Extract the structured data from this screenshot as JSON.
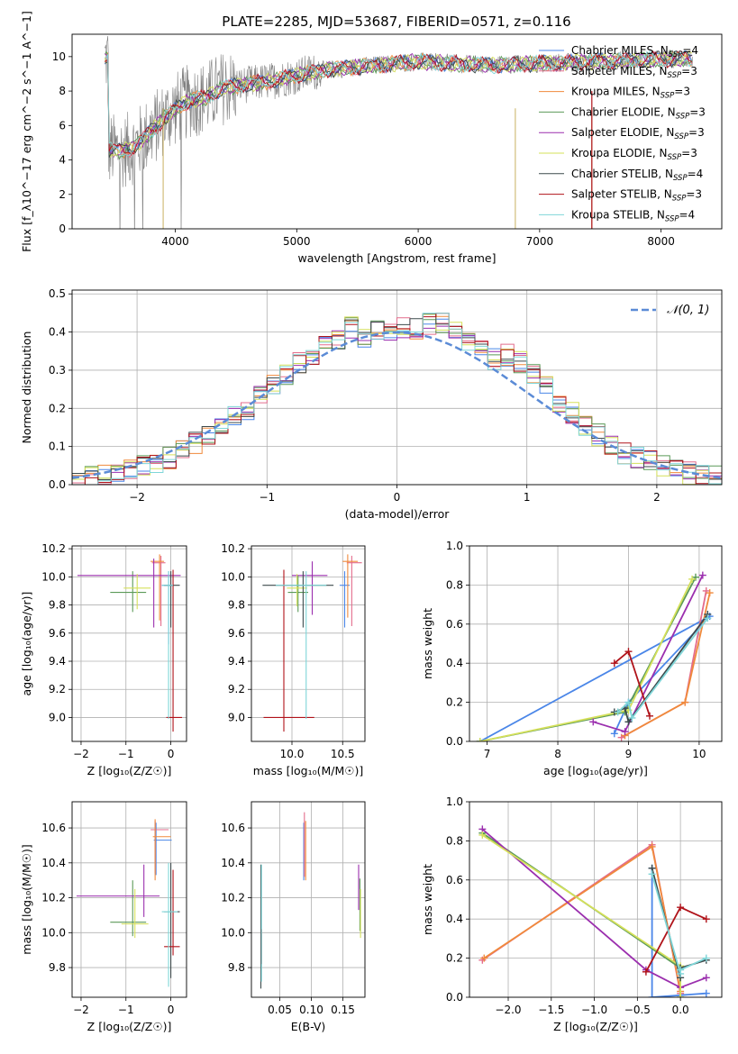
{
  "figure": {
    "title": "PLATE=2285, MJD=53687, FIBERID=0571, z=0.116"
  },
  "colors": {
    "Chabrier MILES": "#4a86e8",
    "Salpeter MILES": "#e36c8c",
    "Kroupa MILES": "#f08a3c",
    "Chabrier ELODIE": "#5b9a58",
    "Salpeter ELODIE": "#9b2fae",
    "Kroupa ELODIE": "#d5e05a",
    "Chabrier STELIB": "#3c4a4c",
    "Salpeter STELIB": "#b0131a",
    "Kroupa STELIB": "#7fd6d8",
    "data": "#808080",
    "gaussian": "#5b8bd6"
  },
  "chart_data": [
    {
      "id": "spectrum",
      "type": "line",
      "xlabel": "wavelength [Angstrom, rest frame]",
      "ylabel": "Flux [f_λ10^−17 erg cm^−2 s^−1 A^−1]",
      "xlim": [
        3150,
        8500
      ],
      "ylim": [
        0,
        11.3
      ],
      "xticks": [
        4000,
        5000,
        6000,
        7000,
        8000
      ],
      "yticks": [
        0,
        2,
        4,
        6,
        8,
        10
      ],
      "legend_position": "top-right",
      "legend": [
        {
          "label": "Chabrier MILES, N",
          "sub": "SSP",
          "suffix": "=4",
          "key": "Chabrier MILES"
        },
        {
          "label": "Salpeter MILES, N",
          "sub": "SSP",
          "suffix": "=3",
          "key": "Salpeter MILES"
        },
        {
          "label": "Kroupa MILES, N",
          "sub": "SSP",
          "suffix": "=3",
          "key": "Kroupa MILES"
        },
        {
          "label": "Chabrier ELODIE, N",
          "sub": "SSP",
          "suffix": "=3",
          "key": "Chabrier ELODIE"
        },
        {
          "label": "Salpeter ELODIE, N",
          "sub": "SSP",
          "suffix": "=3",
          "key": "Salpeter ELODIE"
        },
        {
          "label": "Kroupa ELODIE, N",
          "sub": "SSP",
          "suffix": "=3",
          "key": "Kroupa ELODIE"
        },
        {
          "label": "Chabrier STELIB, N",
          "sub": "SSP",
          "suffix": "=4",
          "key": "Chabrier STELIB"
        },
        {
          "label": "Salpeter STELIB, N",
          "sub": "SSP",
          "suffix": "=3",
          "key": "Salpeter STELIB"
        },
        {
          "label": "Kroupa STELIB, N",
          "sub": "SSP",
          "suffix": "=4",
          "key": "Kroupa STELIB"
        }
      ],
      "continuum": [
        [
          3450,
          4.6
        ],
        [
          3550,
          4.5
        ],
        [
          3650,
          4.7
        ],
        [
          3750,
          5.3
        ],
        [
          3850,
          6.0
        ],
        [
          3950,
          6.7
        ],
        [
          4050,
          7.2
        ],
        [
          4150,
          7.5
        ],
        [
          4250,
          7.6
        ],
        [
          4400,
          8.2
        ],
        [
          4600,
          8.4
        ],
        [
          4800,
          8.6
        ],
        [
          5000,
          8.9
        ],
        [
          5200,
          9.2
        ],
        [
          5500,
          9.4
        ],
        [
          5800,
          9.6
        ],
        [
          6000,
          9.7
        ],
        [
          6300,
          9.6
        ],
        [
          6600,
          9.5
        ],
        [
          7000,
          9.6
        ],
        [
          7400,
          9.7
        ],
        [
          7800,
          9.8
        ],
        [
          8250,
          9.9
        ]
      ],
      "data_range": [
        3420,
        8260
      ]
    },
    {
      "id": "residuals",
      "type": "histogram",
      "xlabel": "(data-model)/error",
      "ylabel": "Normed distribution",
      "xlim": [
        -2.5,
        2.5
      ],
      "ylim": [
        0,
        0.51
      ],
      "xticks": [
        -2,
        -1,
        0,
        1,
        2
      ],
      "yticks": [
        0.0,
        0.1,
        0.2,
        0.3,
        0.4,
        0.5
      ],
      "legend_label": "𝒩(0, 1)",
      "legend_position": "top-right",
      "bin_width": 0.1,
      "bin_start": -2.5,
      "base": [
        0.015,
        0.02,
        0.025,
        0.03,
        0.04,
        0.05,
        0.06,
        0.07,
        0.09,
        0.11,
        0.13,
        0.15,
        0.18,
        0.2,
        0.23,
        0.26,
        0.29,
        0.32,
        0.34,
        0.37,
        0.38,
        0.41,
        0.39,
        0.4,
        0.4,
        0.41,
        0.41,
        0.42,
        0.42,
        0.4,
        0.38,
        0.36,
        0.33,
        0.34,
        0.32,
        0.29,
        0.26,
        0.22,
        0.19,
        0.15,
        0.13,
        0.1,
        0.08,
        0.07,
        0.06,
        0.05,
        0.04,
        0.03,
        0.025,
        0.02
      ],
      "series_order": [
        "Chabrier MILES",
        "Salpeter MILES",
        "Kroupa MILES",
        "Chabrier ELODIE",
        "Salpeter ELODIE",
        "Kroupa ELODIE",
        "Chabrier STELIB",
        "Salpeter STELIB",
        "Kroupa STELIB"
      ]
    },
    {
      "id": "age_vs_Z",
      "type": "errorbar",
      "xlabel": "Z [log₁₀(Z/Z☉)]",
      "ylabel": "age  [log₁₀(age/yr)]",
      "xlim": [
        -2.2,
        0.35
      ],
      "ylim": [
        8.83,
        10.22
      ],
      "xticks": [
        -2,
        -1,
        0
      ],
      "yticks": [
        9.0,
        9.2,
        9.4,
        9.6,
        9.8,
        10.0,
        10.2
      ],
      "points": [
        {
          "key": "Chabrier MILES",
          "x": -0.05,
          "y": 9.94,
          "xe": [
            0.15,
            0.1
          ],
          "ye": [
            0.42,
            0.1
          ]
        },
        {
          "key": "Salpeter MILES",
          "x": -0.22,
          "y": 10.1,
          "xe": [
            0.2,
            0.1
          ],
          "ye": [
            0.45,
            0.05
          ]
        },
        {
          "key": "Kroupa MILES",
          "x": -0.25,
          "y": 10.11,
          "xe": [
            0.2,
            0.1
          ],
          "ye": [
            0.42,
            0.05
          ]
        },
        {
          "key": "Chabrier ELODIE",
          "x": -0.85,
          "y": 9.89,
          "xe": [
            0.5,
            0.3
          ],
          "ye": [
            0.14,
            0.15
          ]
        },
        {
          "key": "Salpeter ELODIE",
          "x": -0.38,
          "y": 10.01,
          "xe": [
            1.7,
            0.6
          ],
          "ye": [
            0.37,
            0.12
          ]
        },
        {
          "key": "Kroupa ELODIE",
          "x": -0.75,
          "y": 9.92,
          "xe": [
            0.3,
            0.3
          ],
          "ye": [
            0.15,
            0.1
          ]
        },
        {
          "key": "Chabrier STELIB",
          "x": 0.0,
          "y": 9.94,
          "xe": [
            0.15,
            0.2
          ],
          "ye": [
            0.3,
            0.1
          ]
        },
        {
          "key": "Salpeter STELIB",
          "x": 0.05,
          "y": 9.0,
          "xe": [
            0.15,
            0.2
          ],
          "ye": [
            0.1,
            1.05
          ]
        },
        {
          "key": "Kroupa STELIB",
          "x": -0.05,
          "y": 9.94,
          "xe": [
            0.15,
            0.1
          ],
          "ye": [
            0.95,
            0.1
          ]
        }
      ]
    },
    {
      "id": "age_vs_mass",
      "type": "errorbar",
      "xlabel": "mass [log₁₀(M/M☉)]",
      "xlim": [
        9.6,
        10.72
      ],
      "ylim": [
        8.83,
        10.22
      ],
      "xticks": [
        10.0,
        10.5
      ],
      "yticks": [
        9.0,
        9.2,
        9.4,
        9.6,
        9.8,
        10.0,
        10.2
      ],
      "points": [
        {
          "key": "Chabrier MILES",
          "x": 10.52,
          "y": 9.94,
          "xe": [
            0.05,
            0.05
          ],
          "ye": [
            0.3,
            0.1
          ]
        },
        {
          "key": "Salpeter MILES",
          "x": 10.59,
          "y": 10.1,
          "xe": [
            0.05,
            0.1
          ],
          "ye": [
            0.45,
            0.05
          ]
        },
        {
          "key": "Kroupa MILES",
          "x": 10.55,
          "y": 10.11,
          "xe": [
            0.05,
            0.1
          ],
          "ye": [
            0.4,
            0.05
          ]
        },
        {
          "key": "Chabrier ELODIE",
          "x": 10.06,
          "y": 9.89,
          "xe": [
            0.1,
            0.1
          ],
          "ye": [
            0.14,
            0.12
          ]
        },
        {
          "key": "Salpeter ELODIE",
          "x": 10.2,
          "y": 10.01,
          "xe": [
            0.2,
            0.15
          ],
          "ye": [
            0.28,
            0.1
          ]
        },
        {
          "key": "Kroupa ELODIE",
          "x": 10.05,
          "y": 9.92,
          "xe": [
            0.1,
            0.1
          ],
          "ye": [
            0.13,
            0.1
          ]
        },
        {
          "key": "Chabrier STELIB",
          "x": 10.11,
          "y": 9.94,
          "xe": [
            0.4,
            0.3
          ],
          "ye": [
            0.3,
            0.1
          ]
        },
        {
          "key": "Salpeter STELIB",
          "x": 9.92,
          "y": 9.0,
          "xe": [
            0.2,
            0.3
          ],
          "ye": [
            0.1,
            1.05
          ]
        },
        {
          "key": "Kroupa STELIB",
          "x": 10.14,
          "y": 9.94,
          "xe": [
            0.3,
            0.2
          ],
          "ye": [
            0.95,
            0.1
          ]
        }
      ]
    },
    {
      "id": "weight_vs_age",
      "type": "line",
      "xlabel": "age  [log₁₀(age/yr)]",
      "ylabel": "mass weight",
      "xlim": [
        6.75,
        10.32
      ],
      "ylim": [
        0,
        1.0
      ],
      "xticks": [
        7,
        8,
        9,
        10
      ],
      "yticks": [
        0.0,
        0.2,
        0.4,
        0.6,
        0.8,
        1.0
      ],
      "series": [
        {
          "key": "Chabrier MILES",
          "x": [
            8.8,
            9.0,
            10.15,
            6.9
          ],
          "y": [
            0.04,
            0.2,
            0.64,
            0.0
          ]
        },
        {
          "key": "Salpeter MILES",
          "x": [
            8.9,
            9.8,
            10.1
          ],
          "y": [
            0.02,
            0.2,
            0.77
          ]
        },
        {
          "key": "Kroupa MILES",
          "x": [
            8.95,
            9.8,
            10.15
          ],
          "y": [
            0.03,
            0.2,
            0.76
          ]
        },
        {
          "key": "Chabrier ELODIE",
          "x": [
            6.9,
            8.95,
            9.95
          ],
          "y": [
            0.0,
            0.15,
            0.84
          ]
        },
        {
          "key": "Salpeter ELODIE",
          "x": [
            8.5,
            8.95,
            10.05
          ],
          "y": [
            0.1,
            0.05,
            0.85
          ]
        },
        {
          "key": "Kroupa ELODIE",
          "x": [
            6.9,
            9.0,
            9.9
          ],
          "y": [
            0.0,
            0.16,
            0.83
          ]
        },
        {
          "key": "Chabrier STELIB",
          "x": [
            8.8,
            8.95,
            9.0,
            10.12
          ],
          "y": [
            0.15,
            0.17,
            0.1,
            0.65
          ]
        },
        {
          "key": "Salpeter STELIB",
          "x": [
            8.8,
            9.0,
            9.3
          ],
          "y": [
            0.4,
            0.46,
            0.13
          ]
        },
        {
          "key": "Kroupa STELIB",
          "x": [
            8.85,
            9.0,
            9.05,
            10.12
          ],
          "y": [
            0.15,
            0.2,
            0.12,
            0.63
          ]
        }
      ]
    },
    {
      "id": "mass_vs_Z",
      "type": "errorbar",
      "xlabel": "Z [log₁₀(Z/Z☉)]",
      "ylabel": "mass [log₁₀(M/M☉)]",
      "xlim": [
        -2.2,
        0.35
      ],
      "ylim": [
        9.63,
        10.75
      ],
      "xticks": [
        -2,
        -1,
        0
      ],
      "yticks": [
        9.8,
        10.0,
        10.2,
        10.4,
        10.6
      ],
      "points": [
        {
          "key": "Chabrier MILES",
          "x": -0.33,
          "y": 10.53,
          "xe": [
            0.05,
            0.35
          ],
          "ye": [
            0.2,
            0.1
          ]
        },
        {
          "key": "Salpeter MILES",
          "x": -0.35,
          "y": 10.59,
          "xe": [
            0.1,
            0.3
          ],
          "ye": [
            0.25,
            0.05
          ]
        },
        {
          "key": "Kroupa MILES",
          "x": -0.35,
          "y": 10.55,
          "xe": [
            0.05,
            0.35
          ],
          "ye": [
            0.25,
            0.1
          ]
        },
        {
          "key": "Chabrier ELODIE",
          "x": -0.85,
          "y": 10.06,
          "xe": [
            0.5,
            0.3
          ],
          "ye": [
            0.08,
            0.24
          ]
        },
        {
          "key": "Salpeter ELODIE",
          "x": -0.6,
          "y": 10.21,
          "xe": [
            1.5,
            0.35
          ],
          "ye": [
            0.12,
            0.18
          ]
        },
        {
          "key": "Kroupa ELODIE",
          "x": -0.8,
          "y": 10.05,
          "xe": [
            0.3,
            0.3
          ],
          "ye": [
            0.08,
            0.2
          ]
        },
        {
          "key": "Chabrier STELIB",
          "x": 0.0,
          "y": 10.12,
          "xe": [
            0.15,
            0.2
          ],
          "ye": [
            0.38,
            0.28
          ]
        },
        {
          "key": "Salpeter STELIB",
          "x": 0.05,
          "y": 9.92,
          "xe": [
            0.2,
            0.15
          ],
          "ye": [
            0.05,
            0.44
          ]
        },
        {
          "key": "Kroupa STELIB",
          "x": -0.05,
          "y": 10.12,
          "xe": [
            0.15,
            0.2
          ],
          "ye": [
            0.43,
            0.28
          ]
        }
      ]
    },
    {
      "id": "mass_vs_ebv",
      "type": "errorbar",
      "xlabel": "E(B-V)",
      "xlim": [
        0.005,
        0.185
      ],
      "ylim": [
        9.63,
        10.75
      ],
      "xticks": [
        0.05,
        0.1,
        0.15
      ],
      "yticks": [
        9.8,
        10.0,
        10.2,
        10.4,
        10.6
      ],
      "points": [
        {
          "key": "Chabrier MILES",
          "x": 0.088,
          "y": 10.53,
          "xe": [
            0,
            0
          ],
          "ye": [
            0.23,
            0.1
          ]
        },
        {
          "key": "Salpeter MILES",
          "x": 0.089,
          "y": 10.59,
          "xe": [
            0,
            0
          ],
          "ye": [
            0.27,
            0.1
          ]
        },
        {
          "key": "Kroupa MILES",
          "x": 0.091,
          "y": 10.55,
          "xe": [
            0,
            0
          ],
          "ye": [
            0.25,
            0.09
          ]
        },
        {
          "key": "Chabrier ELODIE",
          "x": 0.177,
          "y": 10.06,
          "xe": [
            0,
            0
          ],
          "ye": [
            0.05,
            0.25
          ]
        },
        {
          "key": "Salpeter ELODIE",
          "x": 0.175,
          "y": 10.21,
          "xe": [
            0,
            0
          ],
          "ye": [
            0.08,
            0.18
          ]
        },
        {
          "key": "Kroupa ELODIE",
          "x": 0.178,
          "y": 10.05,
          "xe": [
            0,
            0
          ],
          "ye": [
            0.08,
            0.2
          ]
        },
        {
          "key": "Chabrier STELIB",
          "x": 0.02,
          "y": 10.12,
          "xe": [
            0,
            0
          ],
          "ye": [
            0.44,
            0.27
          ]
        },
        {
          "key": "Salpeter STELIB",
          "x": 0.021,
          "y": 9.92,
          "xe": [
            0,
            0
          ],
          "ye": [
            0.1,
            0.1
          ]
        },
        {
          "key": "Kroupa STELIB",
          "x": 0.021,
          "y": 10.12,
          "xe": [
            0,
            0
          ],
          "ye": [
            0.4,
            0.27
          ]
        }
      ]
    },
    {
      "id": "weight_vs_Z",
      "type": "line",
      "xlabel": "Z [log₁₀(Z/Z☉)]",
      "ylabel": "mass weight",
      "xlim": [
        -2.45,
        0.48
      ],
      "ylim": [
        0,
        1.0
      ],
      "xticks": [
        -2.0,
        -1.5,
        -1.0,
        -0.5,
        0.0
      ],
      "yticks": [
        0.0,
        0.2,
        0.4,
        0.6,
        0.8,
        1.0
      ],
      "series": [
        {
          "key": "Chabrier MILES",
          "x": [
            -0.33,
            -0.33,
            0.3
          ],
          "y": [
            0.66,
            0.0,
            0.02
          ]
        },
        {
          "key": "Salpeter MILES",
          "x": [
            -2.3,
            -0.33,
            0.0
          ],
          "y": [
            0.19,
            0.78,
            0.02
          ]
        },
        {
          "key": "Kroupa MILES",
          "x": [
            -2.28,
            -0.33,
            0.0
          ],
          "y": [
            0.2,
            0.77,
            0.03
          ]
        },
        {
          "key": "Chabrier ELODIE",
          "x": [
            -2.3,
            0.0,
            0.0
          ],
          "y": [
            0.84,
            0.15,
            0.0
          ]
        },
        {
          "key": "Salpeter ELODIE",
          "x": [
            -2.3,
            -0.4,
            0.0,
            0.3
          ],
          "y": [
            0.86,
            0.14,
            0.05,
            0.1
          ]
        },
        {
          "key": "Kroupa ELODIE",
          "x": [
            -2.3,
            0.0,
            0.0
          ],
          "y": [
            0.83,
            0.16,
            0.0
          ]
        },
        {
          "key": "Chabrier STELIB",
          "x": [
            -0.33,
            0.0,
            0.0,
            0.3
          ],
          "y": [
            0.66,
            0.1,
            0.15,
            0.19
          ]
        },
        {
          "key": "Salpeter STELIB",
          "x": [
            -0.4,
            0.0,
            0.3
          ],
          "y": [
            0.13,
            0.46,
            0.4
          ]
        },
        {
          "key": "Kroupa STELIB",
          "x": [
            -0.33,
            0.0,
            0.0,
            0.3
          ],
          "y": [
            0.63,
            0.12,
            0.14,
            0.2
          ]
        }
      ]
    }
  ]
}
